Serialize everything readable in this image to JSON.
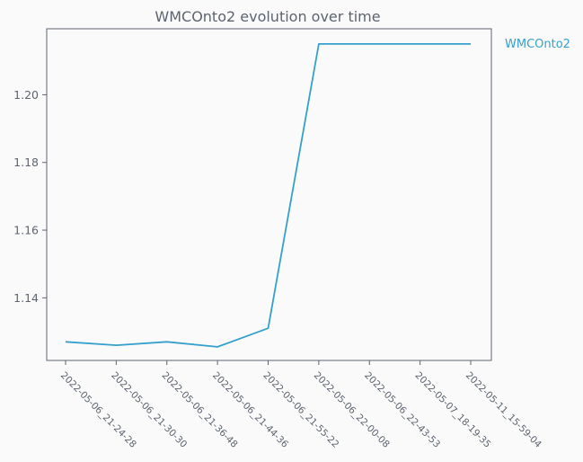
{
  "chart_data": {
    "type": "line",
    "title": "WMCOnto2 evolution over time",
    "xlabel": "",
    "ylabel": "",
    "categories": [
      "2022-05-06_21-24-28",
      "2022-05-06_21-30-30",
      "2022-05-06_21-36-48",
      "2022-05-06_21-44-36",
      "2022-05-06_21-55-22",
      "2022-05-06_22-00-08",
      "2022-05-06_22-43-53",
      "2022-05-07_18-19-35",
      "2022-05-11_15-59-04"
    ],
    "series": [
      {
        "name": "WMCOnto2",
        "color": "#35a0cc",
        "values": [
          1.127,
          1.126,
          1.127,
          1.1255,
          1.131,
          1.215,
          1.215,
          1.215,
          1.215
        ]
      }
    ],
    "ylim": [
      1.1215,
      1.2195
    ],
    "yticks": [
      1.14,
      1.16,
      1.18,
      1.2
    ],
    "ytick_labels": [
      "1.14",
      "1.16",
      "1.18",
      "1.20"
    ],
    "grid": false,
    "legend_position": "right-outside-top"
  }
}
